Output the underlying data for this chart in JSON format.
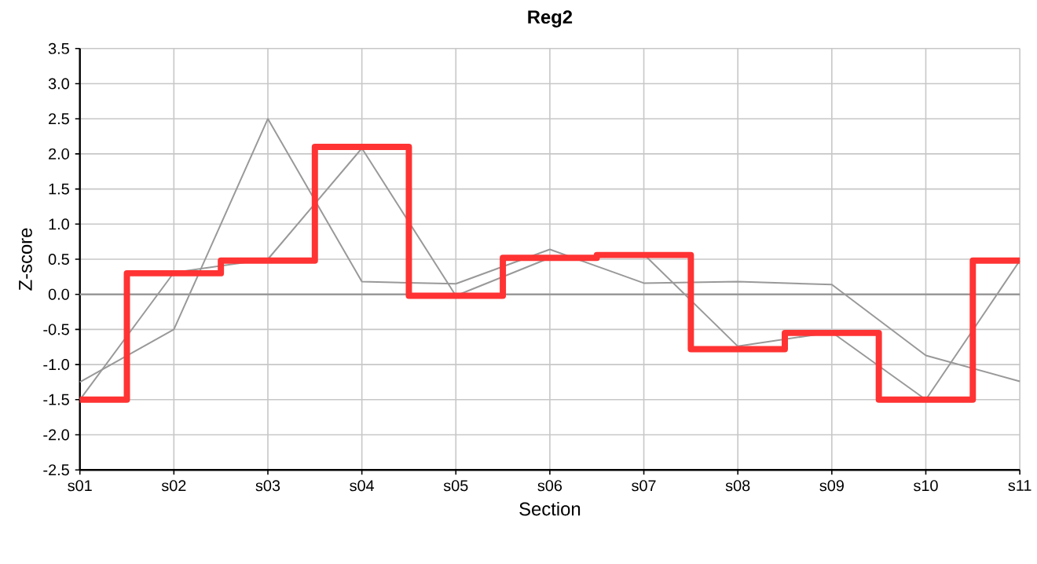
{
  "chart_data": {
    "type": "line",
    "title": "Reg2",
    "xlabel": "Section",
    "ylabel": "Z-score",
    "categories": [
      "s01",
      "s02",
      "s03",
      "s04",
      "s05",
      "s06",
      "s07",
      "s08",
      "s09",
      "s10",
      "s11"
    ],
    "series": [
      {
        "color": "#999999",
        "values": [
          -1.25,
          -0.5,
          2.5,
          0.18,
          0.15,
          0.64,
          0.16,
          0.18,
          0.14,
          -0.87,
          -1.24
        ]
      },
      {
        "color": "#999999",
        "values": [
          -1.5,
          0.31,
          0.5,
          2.08,
          -0.02,
          0.52,
          0.57,
          -0.74,
          -0.54,
          -1.5,
          0.48
        ]
      },
      {
        "type": "step",
        "color": "#ff3333",
        "values": [
          -1.5,
          0.3,
          0.48,
          2.1,
          -0.02,
          0.52,
          0.56,
          -0.78,
          -0.55,
          -1.5,
          0.48
        ]
      }
    ],
    "ylim": [
      -2.5,
      3.5
    ],
    "yticks": [
      {
        "value": -2.5,
        "label": "-2.5"
      },
      {
        "value": -2,
        "label": "-2.0"
      },
      {
        "value": -1.5,
        "label": "-1.5"
      },
      {
        "value": -1,
        "label": "-1.0"
      },
      {
        "value": -0.5,
        "label": "-0.5"
      },
      {
        "value": 0,
        "label": "0.0"
      },
      {
        "value": 0.5,
        "label": "0.5"
      },
      {
        "value": 1,
        "label": "1.0"
      },
      {
        "value": 1.5,
        "label": "1.5"
      },
      {
        "value": 2,
        "label": "2.0"
      },
      {
        "value": 2.5,
        "label": "2.5"
      },
      {
        "value": 3,
        "label": "3.0"
      },
      {
        "value": 3.5,
        "label": "3.5"
      }
    ],
    "ref_lines": [
      {
        "axis": "y",
        "value": 0,
        "color": "#999999"
      }
    ],
    "grid": true,
    "marker": "none"
  }
}
